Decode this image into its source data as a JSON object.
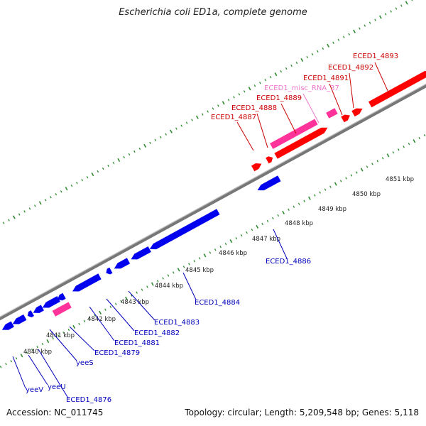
{
  "title": "Escherichia coli ED1a, complete genome",
  "footer": {
    "accession": "Accession: NC_011745",
    "summary": "Topology: circular; Length: 5,209,548 bp; Genes: 5,118"
  },
  "colors": {
    "forward_cds": "#ff0000",
    "forward_rna": "#ff3399",
    "reverse_cds": "#0000ee",
    "reverse_rna": "#ff3399",
    "backbone": "#888888",
    "tick": "#2e8b2e",
    "forward_label": "#cc0000",
    "rna_label": "#ee77cc",
    "reverse_label": "#0000bb"
  },
  "kbp_ticks": [
    "4840 kbp",
    "4841 kbp",
    "4842 kbp",
    "4843 kbp",
    "4844 kbp",
    "4845 kbp",
    "4846 kbp",
    "4847 kbp",
    "4848 kbp",
    "4849 kbp",
    "4850 kbp",
    "4851 kbp"
  ],
  "forward_labels": [
    "ECED1_4887",
    "ECED1_4888",
    "ECED1_4889",
    "ECED1_misc_RNA_37",
    "ECED1_4891",
    "ECED1_4892",
    "ECED1_4893"
  ],
  "reverse_labels": [
    "yeeV",
    "yeeU",
    "ECED1_4876",
    "yeeS",
    "ECED1_4879",
    "ECED1_4881",
    "ECED1_4882",
    "ECED1_4883",
    "ECED1_4884",
    "ECED1_4886"
  ]
}
